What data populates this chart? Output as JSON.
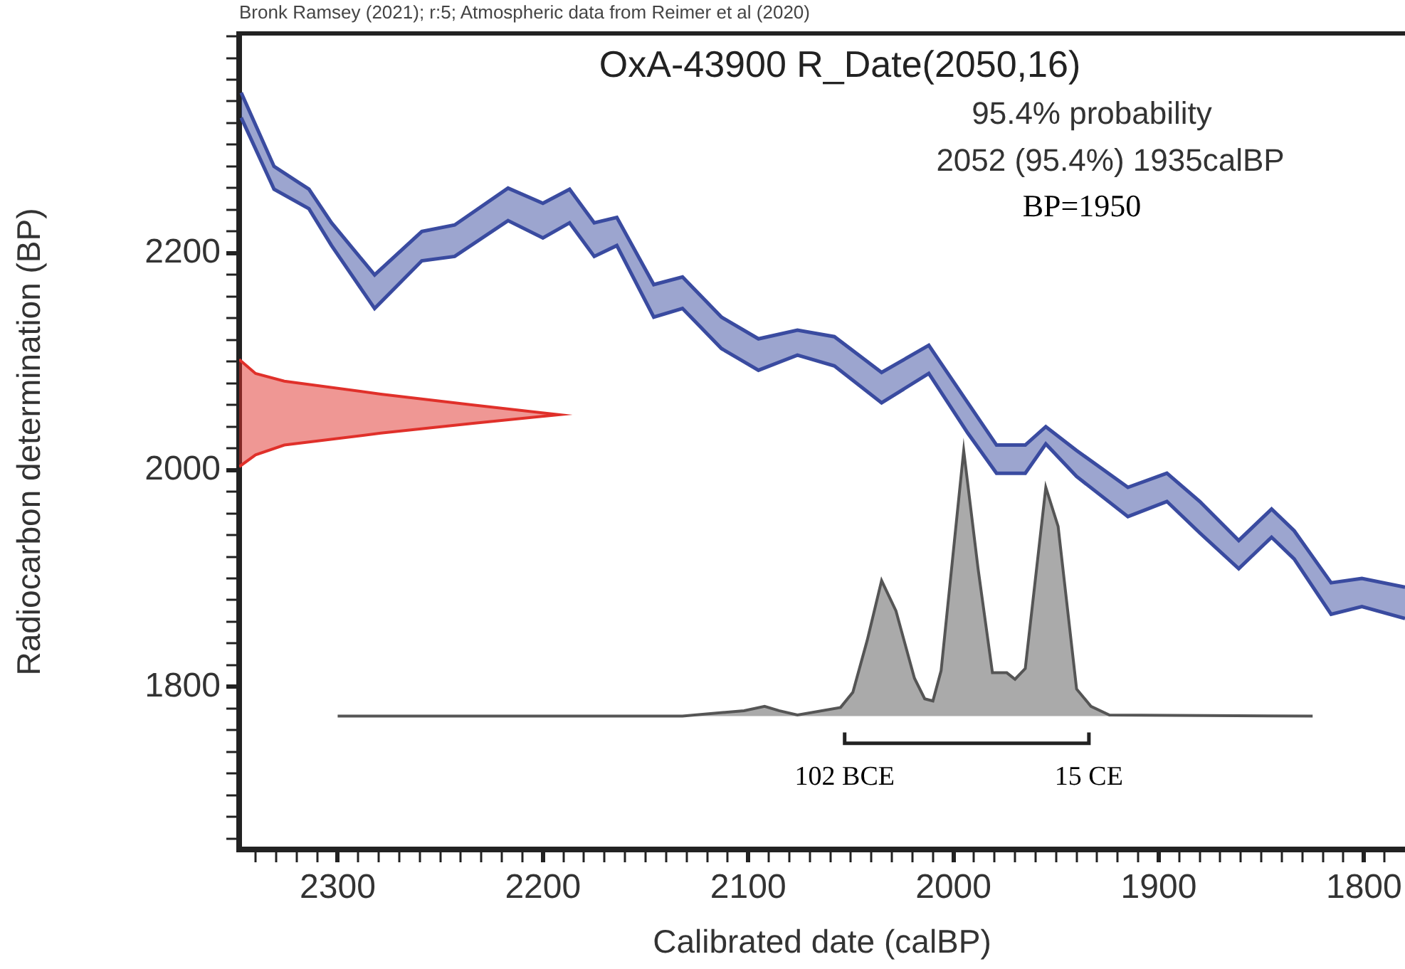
{
  "chart_data": {
    "type": "line",
    "title": "OxA-43900 R_Date(2050,16)",
    "xlabel": "Calibrated date (calBP)",
    "ylabel": "Radiocarbon determination (BP)",
    "annotations": [
      "Bronk Ramsey (2021); r:5; Atmospheric data from Reimer et al (2020)",
      "95.4% probability",
      "2052 (95.4%) 1935calBP",
      "BP=1950",
      {
        "text": "102 BCE",
        "x": 2053,
        "y": 1748
      },
      {
        "text": "15 CE",
        "x": 1934,
        "y": 1748
      }
    ],
    "xlim": [
      2348,
      1780
    ],
    "ylim": [
      1650,
      2402
    ],
    "marker": "none",
    "line_style": "solid",
    "xticks": [
      {
        "value": 1790,
        "label": null
      },
      1800,
      {
        "value": 1810,
        "label": null
      },
      {
        "value": 1820,
        "label": null
      },
      {
        "value": 1830,
        "label": null
      },
      {
        "value": 1840,
        "label": null
      },
      {
        "value": 1850,
        "label": null
      },
      {
        "value": 1860,
        "label": null
      },
      {
        "value": 1870,
        "label": null
      },
      {
        "value": 1880,
        "label": null
      },
      {
        "value": 1890,
        "label": null
      },
      1900,
      {
        "value": 1910,
        "label": null
      },
      {
        "value": 1920,
        "label": null
      },
      {
        "value": 1930,
        "label": null
      },
      {
        "value": 1940,
        "label": null
      },
      {
        "value": 1950,
        "label": null
      },
      {
        "value": 1960,
        "label": null
      },
      {
        "value": 1970,
        "label": null
      },
      {
        "value": 1980,
        "label": null
      },
      {
        "value": 1990,
        "label": null
      },
      2000,
      {
        "value": 2010,
        "label": null
      },
      {
        "value": 2020,
        "label": null
      },
      {
        "value": 2030,
        "label": null
      },
      {
        "value": 2040,
        "label": null
      },
      {
        "value": 2050,
        "label": null
      },
      {
        "value": 2060,
        "label": null
      },
      {
        "value": 2070,
        "label": null
      },
      {
        "value": 2080,
        "label": null
      },
      {
        "value": 2090,
        "label": null
      },
      2100,
      {
        "value": 2110,
        "label": null
      },
      {
        "value": 2120,
        "label": null
      },
      {
        "value": 2130,
        "label": null
      },
      {
        "value": 2140,
        "label": null
      },
      {
        "value": 2150,
        "label": null
      },
      {
        "value": 2160,
        "label": null
      },
      {
        "value": 2170,
        "label": null
      },
      {
        "value": 2180,
        "label": null
      },
      {
        "value": 2190,
        "label": null
      },
      2200,
      {
        "value": 2210,
        "label": null
      },
      {
        "value": 2220,
        "label": null
      },
      {
        "value": 2230,
        "label": null
      },
      {
        "value": 2240,
        "label": null
      },
      {
        "value": 2250,
        "label": null
      },
      {
        "value": 2260,
        "label": null
      },
      {
        "value": 2270,
        "label": null
      },
      {
        "value": 2280,
        "label": null
      },
      {
        "value": 2290,
        "label": null
      },
      2300,
      {
        "value": 2310,
        "label": null
      },
      {
        "value": 2320,
        "label": null
      },
      {
        "value": 2330,
        "label": null
      },
      {
        "value": 2340,
        "label": null
      }
    ],
    "yticks": [
      {
        "value": 1660,
        "label": null
      },
      {
        "value": 1680,
        "label": null
      },
      {
        "value": 1700,
        "label": null
      },
      {
        "value": 1720,
        "label": null
      },
      {
        "value": 1740,
        "label": null
      },
      {
        "value": 1760,
        "label": null
      },
      {
        "value": 1780,
        "label": null
      },
      1800,
      {
        "value": 1820,
        "label": null
      },
      {
        "value": 1840,
        "label": null
      },
      {
        "value": 1860,
        "label": null
      },
      {
        "value": 1880,
        "label": null
      },
      {
        "value": 1900,
        "label": null
      },
      {
        "value": 1920,
        "label": null
      },
      {
        "value": 1940,
        "label": null
      },
      {
        "value": 1960,
        "label": null
      },
      {
        "value": 1980,
        "label": null
      },
      2000,
      {
        "value": 2020,
        "label": null
      },
      {
        "value": 2040,
        "label": null
      },
      {
        "value": 2060,
        "label": null
      },
      {
        "value": 2080,
        "label": null
      },
      {
        "value": 2100,
        "label": null
      },
      {
        "value": 2120,
        "label": null
      },
      {
        "value": 2140,
        "label": null
      },
      {
        "value": 2160,
        "label": null
      },
      {
        "value": 2180,
        "label": null
      },
      2200,
      {
        "value": 2220,
        "label": null
      },
      {
        "value": 2240,
        "label": null
      },
      {
        "value": 2260,
        "label": null
      },
      {
        "value": 2280,
        "label": null
      },
      {
        "value": 2300,
        "label": null
      },
      {
        "value": 2320,
        "label": null
      },
      {
        "value": 2340,
        "label": null
      },
      {
        "value": 2360,
        "label": null
      },
      {
        "value": 2380,
        "label": null
      },
      {
        "value": 2400,
        "label": null
      }
    ],
    "series": [
      {
        "type": "line",
        "color": "#3a4ba0",
        "x": [
          2347,
          2331,
          2314,
          2303,
          2282,
          2259,
          2243,
          2217,
          2200,
          2187,
          2175,
          2164,
          2146,
          2132,
          2113,
          2095,
          2076,
          2058,
          2035,
          2012,
          1993,
          1979,
          1965,
          1955,
          1940,
          1915,
          1896,
          1880,
          1861,
          1845,
          1834,
          1816,
          1801,
          1780
        ],
        "values": [
          2348,
          2280,
          2259,
          2228,
          2180,
          2220,
          2226,
          2260,
          2246,
          2259,
          2228,
          2233,
          2171,
          2178,
          2141,
          2121,
          2129,
          2123,
          2090,
          2115,
          2062,
          2023,
          2023,
          2040,
          2018,
          1984,
          1997,
          1971,
          1935,
          1964,
          1944,
          1896,
          1900,
          1892
        ],
        "upper": [
          2348,
          2280,
          2259,
          2228,
          2180,
          2220,
          2226,
          2260,
          2246,
          2259,
          2228,
          2233,
          2171,
          2178,
          2141,
          2121,
          2129,
          2123,
          2090,
          2115,
          2062,
          2023,
          2023,
          2040,
          2018,
          1984,
          1997,
          1971,
          1935,
          1964,
          1944,
          1896,
          1900,
          1892
        ],
        "lower": [
          2325,
          2259,
          2241,
          2207,
          2149,
          2193,
          2197,
          2230,
          2214,
          2228,
          2197,
          2207,
          2141,
          2149,
          2112,
          2092,
          2106,
          2096,
          2062,
          2089,
          2034,
          1997,
          1997,
          2024,
          1994,
          1957,
          1971,
          1942,
          1909,
          1938,
          1918,
          1867,
          1874,
          1863
        ]
      },
      {
        "type": "line",
        "color": "#3a4ba0",
        "x": [
          2347,
          2331,
          2314,
          2303,
          2282,
          2259,
          2243,
          2217,
          2200,
          2187,
          2175,
          2164,
          2146,
          2132,
          2113,
          2095,
          2076,
          2058,
          2035,
          2012,
          1993,
          1979,
          1965,
          1955,
          1940,
          1915,
          1896,
          1880,
          1861,
          1845,
          1834,
          1816,
          1801,
          1780
        ],
        "values": [
          2325,
          2259,
          2241,
          2207,
          2149,
          2193,
          2197,
          2230,
          2214,
          2228,
          2197,
          2207,
          2141,
          2149,
          2112,
          2092,
          2106,
          2096,
          2062,
          2089,
          2034,
          1997,
          1997,
          2024,
          1994,
          1957,
          1971,
          1942,
          1909,
          1938,
          1918,
          1867,
          1874,
          1863
        ]
      },
      {
        "type": "area",
        "color": "#e0302a",
        "x": [
          2348,
          2340,
          2326,
          2279,
          2234,
          2192,
          2234,
          2279,
          2326,
          2340,
          2348
        ],
        "values": [
          2102,
          2089,
          2082,
          2070,
          2060,
          2051,
          2043,
          2034,
          2023,
          2014,
          2003
        ]
      },
      {
        "type": "area",
        "color": "#555555",
        "x": [
          2300,
          2132,
          2102,
          2092,
          2085,
          2076,
          2055,
          2049,
          2042,
          2035,
          2028,
          2019,
          2014,
          2010,
          2006,
          1995,
          1988,
          1981,
          1974,
          1970,
          1965,
          1955,
          1949,
          1940,
          1933,
          1924,
          1825
        ],
        "values": [
          1773,
          1773,
          1778,
          1782,
          1778,
          1774,
          1781,
          1795,
          1843,
          1898,
          1870,
          1808,
          1789,
          1787,
          1815,
          2018,
          1909,
          1813,
          1813,
          1807,
          1817,
          1984,
          1948,
          1798,
          1782,
          1774,
          1773
        ]
      },
      {
        "type": "line",
        "color": "#222222",
        "x": [
          2053,
          2053,
          1934,
          1934
        ],
        "values": [
          1758,
          1748,
          1748,
          1758
        ]
      }
    ]
  }
}
